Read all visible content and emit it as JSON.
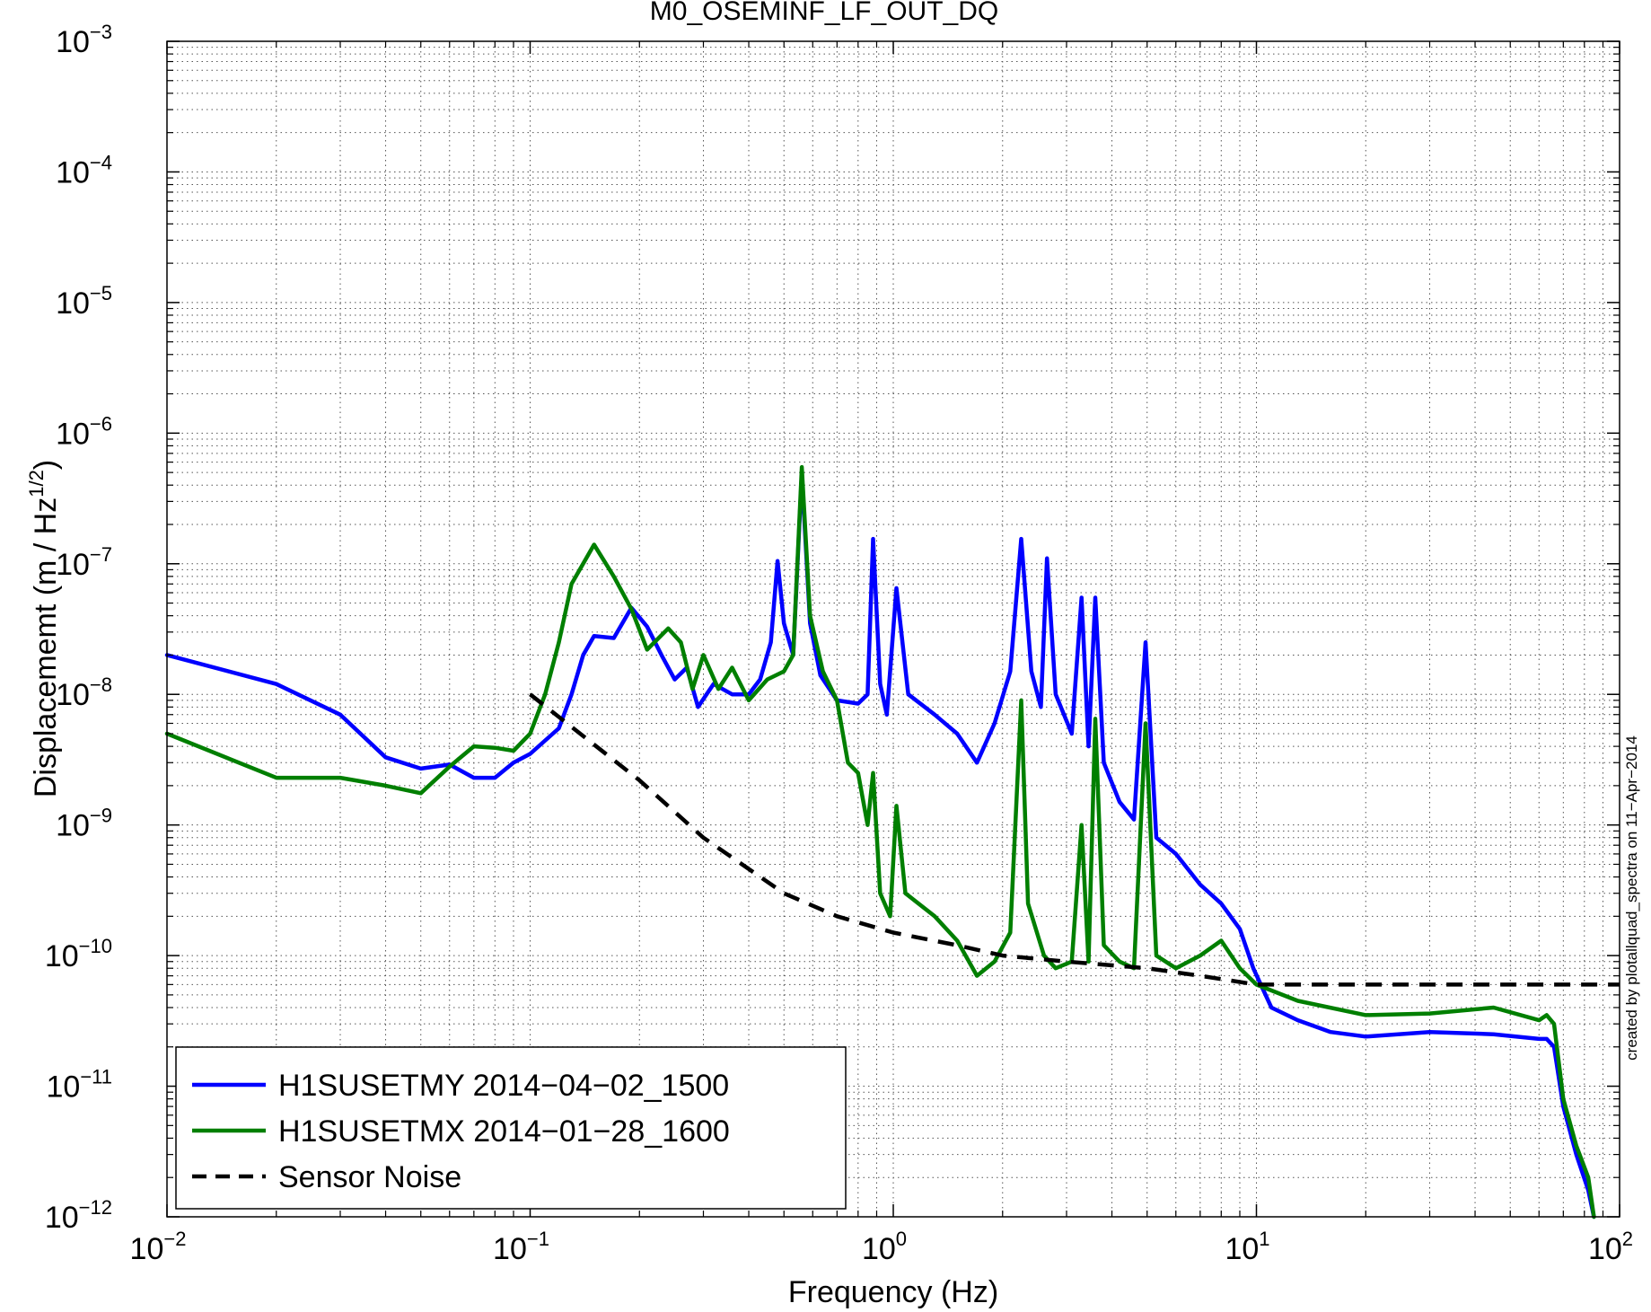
{
  "chart_data": {
    "type": "line",
    "title": "M0_OSEMINF_LF_OUT_DQ",
    "xlabel": "Frequency (Hz)",
    "ylabel": "Displacememt (m / Hz",
    "ylabel_superscript": "1/2",
    "ylabel_close": ")",
    "x_scale": "log",
    "y_scale": "log",
    "xlim": [
      0.01,
      100
    ],
    "ylim": [
      1e-12,
      0.001
    ],
    "grid": true,
    "legend_position": "bottom-left",
    "x_ticks": [
      {
        "value": 0.01,
        "base": "10",
        "exp": "−2"
      },
      {
        "value": 0.1,
        "base": "10",
        "exp": "−1"
      },
      {
        "value": 1,
        "base": "10",
        "exp": "0"
      },
      {
        "value": 10,
        "base": "10",
        "exp": "1"
      },
      {
        "value": 100,
        "base": "10",
        "exp": "2"
      }
    ],
    "y_ticks": [
      {
        "value": 0.001,
        "base": "10",
        "exp": "−3"
      },
      {
        "value": 0.0001,
        "base": "10",
        "exp": "−4"
      },
      {
        "value": 1e-05,
        "base": "10",
        "exp": "−5"
      },
      {
        "value": 1e-06,
        "base": "10",
        "exp": "−6"
      },
      {
        "value": 1e-07,
        "base": "10",
        "exp": "−7"
      },
      {
        "value": 1e-08,
        "base": "10",
        "exp": "−8"
      },
      {
        "value": 1e-09,
        "base": "10",
        "exp": "−9"
      },
      {
        "value": 1e-10,
        "base": "10",
        "exp": "−10"
      },
      {
        "value": 1e-11,
        "base": "10",
        "exp": "−11"
      },
      {
        "value": 1e-12,
        "base": "10",
        "exp": "−12"
      }
    ],
    "annotation": "created by plotallquad_spectra on 11−Apr−2014",
    "series": [
      {
        "name": "H1SUSETMY 2014−04−02_1500",
        "color": "#0000ff",
        "style": "solid",
        "points": [
          [
            0.01,
            2e-08
          ],
          [
            0.02,
            1.2e-08
          ],
          [
            0.03,
            7e-09
          ],
          [
            0.04,
            3.3e-09
          ],
          [
            0.05,
            2.7e-09
          ],
          [
            0.06,
            2.9e-09
          ],
          [
            0.07,
            2.3e-09
          ],
          [
            0.08,
            2.3e-09
          ],
          [
            0.09,
            3e-09
          ],
          [
            0.1,
            3.5e-09
          ],
          [
            0.12,
            5.5e-09
          ],
          [
            0.13,
            1e-08
          ],
          [
            0.14,
            2e-08
          ],
          [
            0.15,
            2.8e-08
          ],
          [
            0.17,
            2.7e-08
          ],
          [
            0.19,
            4.6e-08
          ],
          [
            0.21,
            3.3e-08
          ],
          [
            0.23,
            2e-08
          ],
          [
            0.25,
            1.3e-08
          ],
          [
            0.27,
            1.6e-08
          ],
          [
            0.29,
            8e-09
          ],
          [
            0.32,
            1.2e-08
          ],
          [
            0.36,
            1e-08
          ],
          [
            0.4,
            1e-08
          ],
          [
            0.43,
            1.3e-08
          ],
          [
            0.46,
            2.5e-08
          ],
          [
            0.48,
            1.05e-07
          ],
          [
            0.5,
            3.5e-08
          ],
          [
            0.53,
            2e-08
          ],
          [
            0.56,
            4.9e-07
          ],
          [
            0.59,
            3.5e-08
          ],
          [
            0.63,
            1.4e-08
          ],
          [
            0.7,
            9e-09
          ],
          [
            0.8,
            8.5e-09
          ],
          [
            0.85,
            1e-08
          ],
          [
            0.88,
            1.55e-07
          ],
          [
            0.92,
            1.2e-08
          ],
          [
            0.96,
            7e-09
          ],
          [
            1.02,
            6.5e-08
          ],
          [
            1.1,
            1e-08
          ],
          [
            1.3,
            7e-09
          ],
          [
            1.5,
            5e-09
          ],
          [
            1.7,
            3e-09
          ],
          [
            1.9,
            6e-09
          ],
          [
            2.1,
            1.5e-08
          ],
          [
            2.25,
            1.55e-07
          ],
          [
            2.4,
            1.5e-08
          ],
          [
            2.55,
            8e-09
          ],
          [
            2.65,
            1.1e-07
          ],
          [
            2.8,
            1e-08
          ],
          [
            3.1,
            5e-09
          ],
          [
            3.3,
            5.5e-08
          ],
          [
            3.45,
            4e-09
          ],
          [
            3.6,
            5.5e-08
          ],
          [
            3.8,
            3e-09
          ],
          [
            4.2,
            1.5e-09
          ],
          [
            4.6,
            1.1e-09
          ],
          [
            4.95,
            2.5e-08
          ],
          [
            5.3,
            8e-10
          ],
          [
            6.0,
            6e-10
          ],
          [
            7.0,
            3.5e-10
          ],
          [
            8.0,
            2.5e-10
          ],
          [
            9.0,
            1.6e-10
          ],
          [
            9.8,
            8e-11
          ],
          [
            11,
            4e-11
          ],
          [
            13,
            3.2e-11
          ],
          [
            16,
            2.6e-11
          ],
          [
            20,
            2.4e-11
          ],
          [
            30,
            2.6e-11
          ],
          [
            45,
            2.5e-11
          ],
          [
            60,
            2.3e-11
          ],
          [
            63,
            2.3e-11
          ],
          [
            66,
            2e-11
          ],
          [
            70,
            7e-12
          ],
          [
            76,
            3e-12
          ],
          [
            82,
            1.6e-12
          ],
          [
            85,
            1e-12
          ]
        ]
      },
      {
        "name": "H1SUSETMX 2014−01−28_1600",
        "color": "#007f00",
        "style": "solid",
        "points": [
          [
            0.01,
            5e-09
          ],
          [
            0.02,
            2.3e-09
          ],
          [
            0.03,
            2.3e-09
          ],
          [
            0.04,
            2e-09
          ],
          [
            0.05,
            1.75e-09
          ],
          [
            0.06,
            2.8e-09
          ],
          [
            0.07,
            4e-09
          ],
          [
            0.08,
            3.9e-09
          ],
          [
            0.09,
            3.7e-09
          ],
          [
            0.1,
            5e-09
          ],
          [
            0.11,
            1e-08
          ],
          [
            0.12,
            2.5e-08
          ],
          [
            0.13,
            7e-08
          ],
          [
            0.15,
            1.4e-07
          ],
          [
            0.17,
            8e-08
          ],
          [
            0.19,
            4.5e-08
          ],
          [
            0.21,
            2.2e-08
          ],
          [
            0.24,
            3.2e-08
          ],
          [
            0.26,
            2.5e-08
          ],
          [
            0.28,
            1.1e-08
          ],
          [
            0.3,
            2e-08
          ],
          [
            0.33,
            1.1e-08
          ],
          [
            0.36,
            1.6e-08
          ],
          [
            0.4,
            9e-09
          ],
          [
            0.45,
            1.3e-08
          ],
          [
            0.5,
            1.5e-08
          ],
          [
            0.53,
            2e-08
          ],
          [
            0.56,
            5.5e-07
          ],
          [
            0.59,
            4e-08
          ],
          [
            0.64,
            1.5e-08
          ],
          [
            0.7,
            9e-09
          ],
          [
            0.75,
            3e-09
          ],
          [
            0.8,
            2.5e-09
          ],
          [
            0.85,
            1e-09
          ],
          [
            0.88,
            2.5e-09
          ],
          [
            0.92,
            3e-10
          ],
          [
            0.98,
            2e-10
          ],
          [
            1.02,
            1.4e-09
          ],
          [
            1.08,
            3e-10
          ],
          [
            1.3,
            2e-10
          ],
          [
            1.5,
            1.3e-10
          ],
          [
            1.7,
            7e-11
          ],
          [
            1.9,
            9e-11
          ],
          [
            2.1,
            1.5e-10
          ],
          [
            2.25,
            9e-09
          ],
          [
            2.35,
            2.5e-10
          ],
          [
            2.6,
            1e-10
          ],
          [
            2.8,
            8e-11
          ],
          [
            3.1,
            9e-11
          ],
          [
            3.3,
            1e-09
          ],
          [
            3.45,
            9e-11
          ],
          [
            3.6,
            6.5e-09
          ],
          [
            3.8,
            1.2e-10
          ],
          [
            4.2,
            9e-11
          ],
          [
            4.6,
            8e-11
          ],
          [
            4.95,
            6e-09
          ],
          [
            5.3,
            1e-10
          ],
          [
            6.0,
            8e-11
          ],
          [
            7.0,
            1e-10
          ],
          [
            8.0,
            1.3e-10
          ],
          [
            9.0,
            8e-11
          ],
          [
            10,
            6e-11
          ],
          [
            13,
            4.5e-11
          ],
          [
            20,
            3.5e-11
          ],
          [
            30,
            3.6e-11
          ],
          [
            45,
            4e-11
          ],
          [
            60,
            3.2e-11
          ],
          [
            63,
            3.5e-11
          ],
          [
            66,
            3e-11
          ],
          [
            70,
            8e-12
          ],
          [
            76,
            3.5e-12
          ],
          [
            82,
            2e-12
          ],
          [
            85,
            1e-12
          ]
        ]
      },
      {
        "name": "Sensor Noise",
        "color": "#000000",
        "style": "dashed",
        "points": [
          [
            0.1,
            1e-08
          ],
          [
            0.2,
            2.2e-09
          ],
          [
            0.3,
            8e-10
          ],
          [
            0.5,
            3e-10
          ],
          [
            0.7,
            2e-10
          ],
          [
            1,
            1.5e-10
          ],
          [
            1.5,
            1.2e-10
          ],
          [
            2,
            1e-10
          ],
          [
            3,
            9e-11
          ],
          [
            5,
            8e-11
          ],
          [
            7,
            7e-11
          ],
          [
            10,
            6e-11
          ],
          [
            20,
            6e-11
          ],
          [
            50,
            6e-11
          ],
          [
            100,
            6e-11
          ]
        ]
      }
    ]
  }
}
